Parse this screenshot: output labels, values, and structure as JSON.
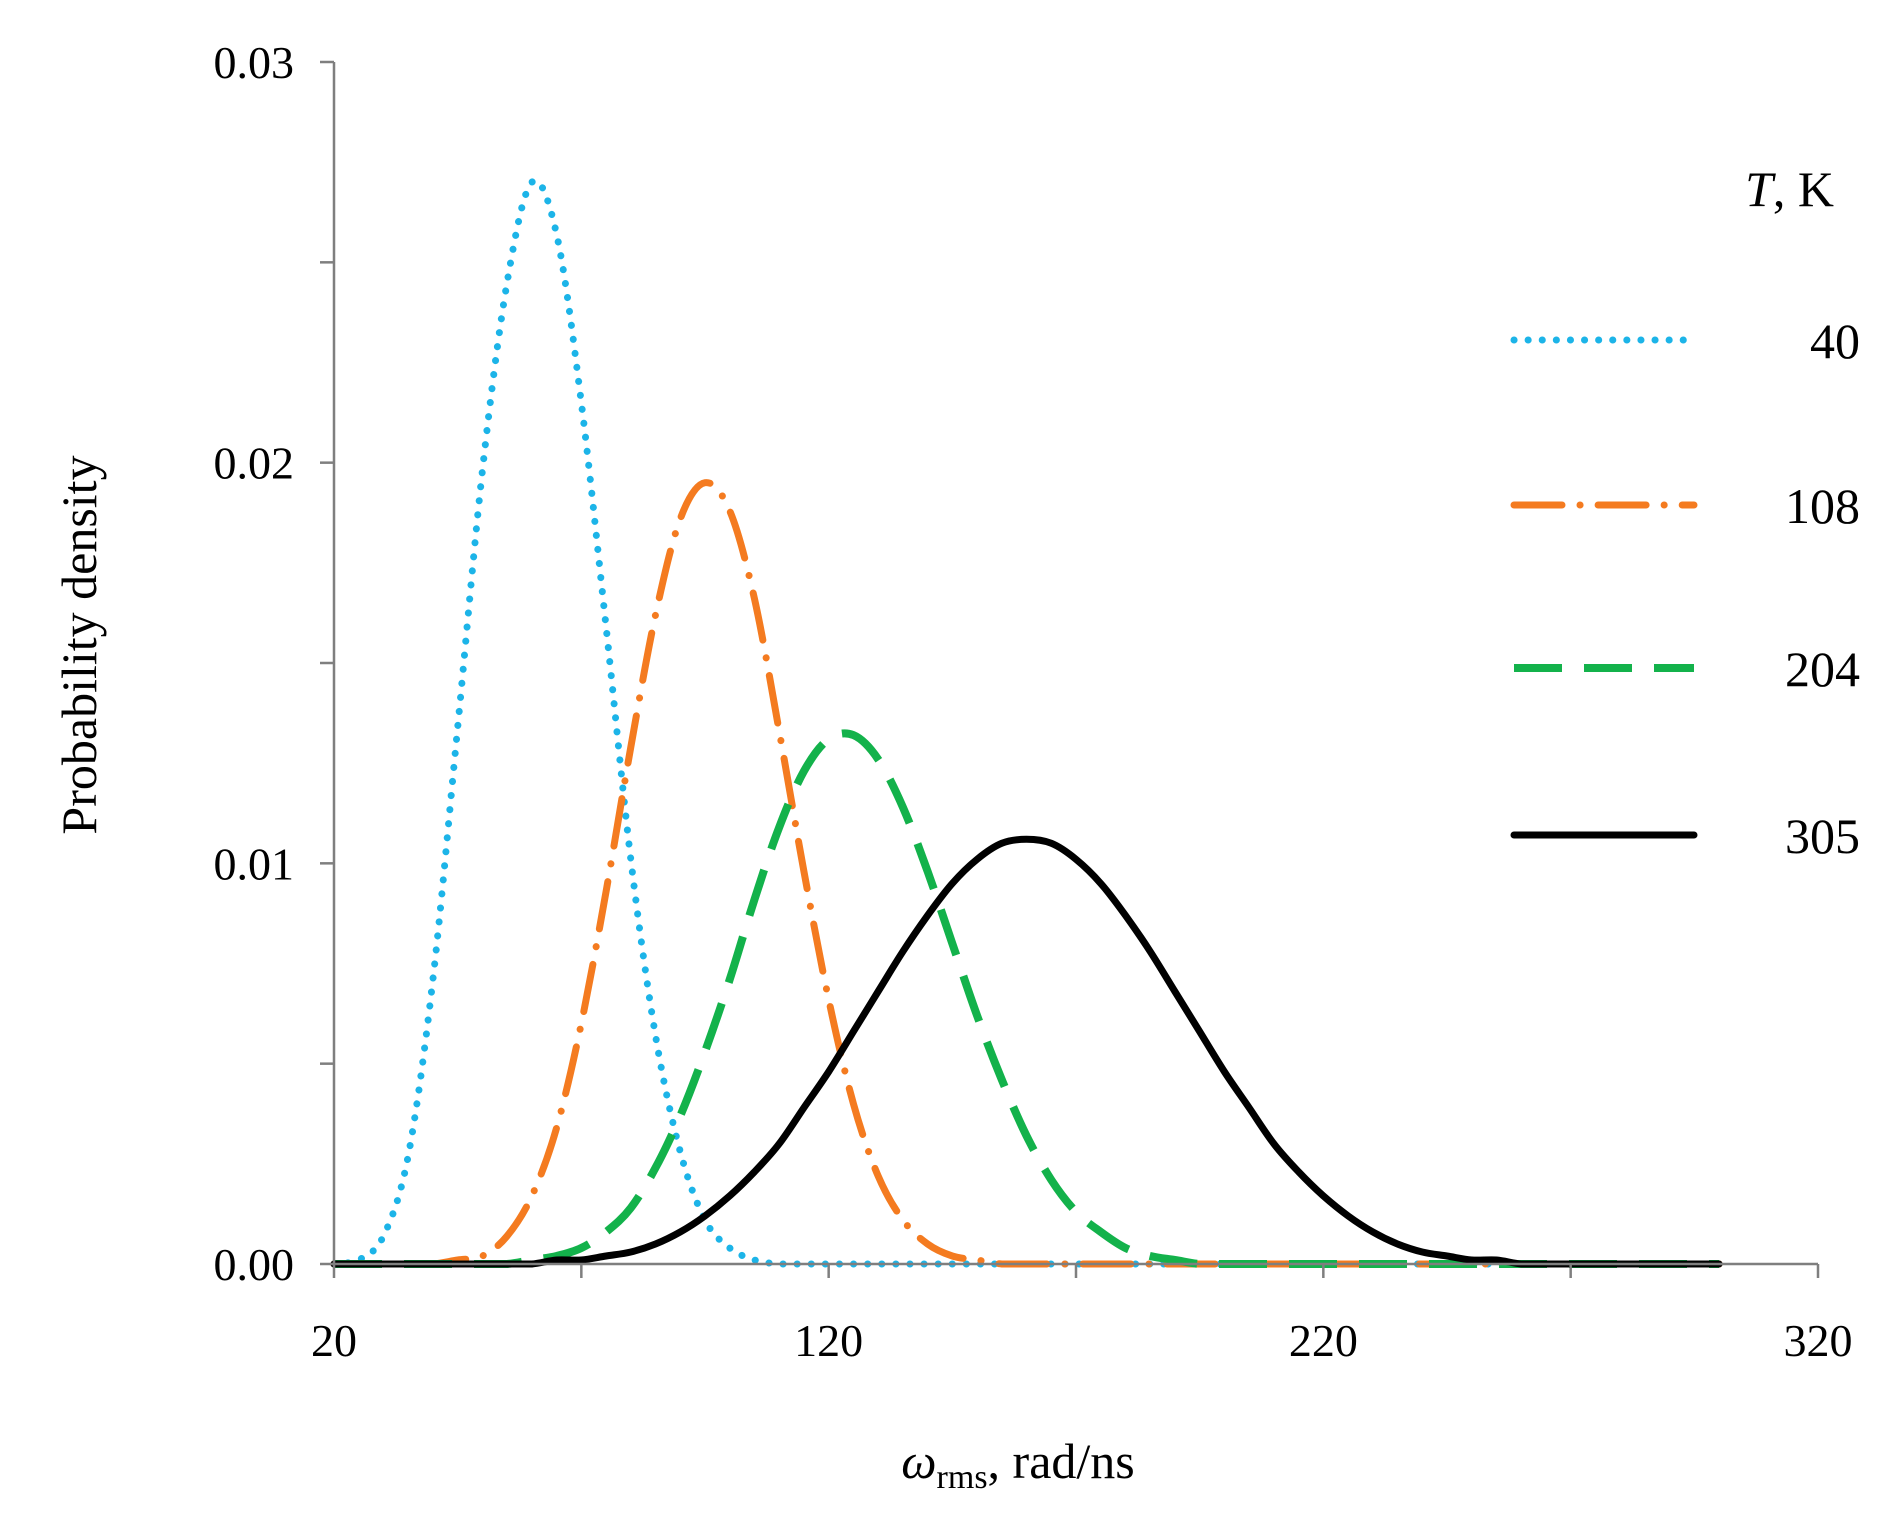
{
  "chart_data": {
    "type": "line",
    "title": "",
    "xlabel_symbol": "ω",
    "xlabel_subscript": "rms",
    "xlabel_units": ", rad/ns",
    "ylabel": "Probability density",
    "xlim": [
      20,
      320
    ],
    "ylim": [
      0,
      0.03
    ],
    "x_tick_values": [
      20,
      120,
      220,
      320
    ],
    "x_tick_labels": [
      "20",
      "120",
      "220",
      "320"
    ],
    "x_minor_ticks": [
      70,
      170,
      270
    ],
    "y_tick_values": [
      0,
      0.01,
      0.02,
      0.03
    ],
    "y_tick_labels": [
      "0.00",
      "0.01",
      "0.02",
      "0.03"
    ],
    "y_minor_ticks": [
      0.005,
      0.015,
      0.025
    ],
    "grid": false,
    "legend_title_symbol": "T",
    "legend_title_units": ", K",
    "legend_position": "right",
    "x": [
      20,
      25,
      30,
      35,
      40,
      45,
      50,
      55,
      60,
      65,
      70,
      75,
      80,
      85,
      90,
      95,
      100,
      105,
      110,
      115,
      120,
      125,
      130,
      135,
      140,
      145,
      150,
      155,
      160,
      165,
      170,
      175,
      180,
      185,
      190,
      195,
      200,
      205,
      210,
      215,
      220,
      225,
      230,
      235,
      240,
      245,
      250,
      255,
      260,
      265,
      270,
      275,
      280,
      285,
      290,
      295,
      300
    ],
    "series": [
      {
        "name": "40",
        "color": "#1cb4e8",
        "dash": "dotted",
        "values": [
          0.0,
          0.0001,
          0.0007,
          0.0027,
          0.0071,
          0.0134,
          0.0198,
          0.0245,
          0.027,
          0.0257,
          0.0215,
          0.0159,
          0.0101,
          0.0057,
          0.0028,
          0.0011,
          0.0004,
          0.0001,
          0.0,
          0.0,
          0.0,
          0.0,
          0.0,
          0.0,
          0.0,
          0.0,
          0.0,
          0.0,
          0.0,
          0.0,
          0.0,
          0.0,
          0.0,
          0.0,
          0.0,
          0.0,
          0.0,
          0.0,
          0.0,
          0.0,
          0.0,
          0.0,
          0.0,
          0.0,
          0.0,
          0.0,
          0.0,
          0.0,
          0.0,
          0.0,
          0.0,
          0.0,
          0.0,
          0.0,
          0.0,
          0.0,
          0.0
        ]
      },
      {
        "name": "108",
        "color": "#f47b20",
        "dash": "dashdot",
        "values": [
          0.0,
          0.0,
          0.0,
          0.0,
          0.0,
          0.0001,
          0.0002,
          0.0007,
          0.0017,
          0.0034,
          0.006,
          0.0093,
          0.0129,
          0.0162,
          0.0186,
          0.0195,
          0.0188,
          0.0166,
          0.0133,
          0.0098,
          0.0066,
          0.004,
          0.0022,
          0.0011,
          0.0005,
          0.0002,
          0.0001,
          0.0,
          0.0,
          0.0,
          0.0,
          0.0,
          0.0,
          0.0,
          0.0,
          0.0,
          0.0,
          0.0,
          0.0,
          0.0,
          0.0,
          0.0,
          0.0,
          0.0,
          0.0,
          0.0,
          0.0,
          0.0,
          0.0,
          0.0,
          0.0,
          0.0,
          0.0,
          0.0,
          0.0,
          0.0,
          0.0
        ]
      },
      {
        "name": "204",
        "color": "#13b24b",
        "dash": "dashed",
        "values": [
          0.0,
          0.0,
          0.0,
          0.0,
          0.0,
          0.0,
          0.0,
          0.0,
          0.0001,
          0.0002,
          0.0004,
          0.0008,
          0.0014,
          0.0024,
          0.0037,
          0.0053,
          0.0071,
          0.0091,
          0.0109,
          0.0123,
          0.0131,
          0.0132,
          0.0126,
          0.0114,
          0.0098,
          0.008,
          0.0062,
          0.0046,
          0.0032,
          0.0021,
          0.0013,
          0.0008,
          0.0004,
          0.0002,
          0.0001,
          0.0,
          0.0,
          0.0,
          0.0,
          0.0,
          0.0,
          0.0,
          0.0,
          0.0,
          0.0,
          0.0,
          0.0,
          0.0,
          0.0,
          0.0,
          0.0,
          0.0,
          0.0,
          0.0,
          0.0,
          0.0,
          0.0
        ]
      },
      {
        "name": "305",
        "color": "#000000",
        "dash": "solid",
        "values": [
          0.0,
          0.0,
          0.0,
          0.0,
          0.0,
          0.0,
          0.0,
          0.0,
          0.0,
          0.0001,
          0.0001,
          0.0002,
          0.0003,
          0.0005,
          0.0008,
          0.0012,
          0.0017,
          0.0023,
          0.003,
          0.0039,
          0.0048,
          0.0058,
          0.0068,
          0.0078,
          0.0087,
          0.0095,
          0.0101,
          0.0105,
          0.0106,
          0.0105,
          0.0101,
          0.0095,
          0.0087,
          0.0078,
          0.0068,
          0.0058,
          0.0048,
          0.0039,
          0.003,
          0.0023,
          0.0017,
          0.0012,
          0.0008,
          0.0005,
          0.0003,
          0.0002,
          0.0001,
          0.0001,
          0.0,
          0.0,
          0.0,
          0.0,
          0.0,
          0.0,
          0.0,
          0.0,
          0.0
        ]
      }
    ]
  }
}
